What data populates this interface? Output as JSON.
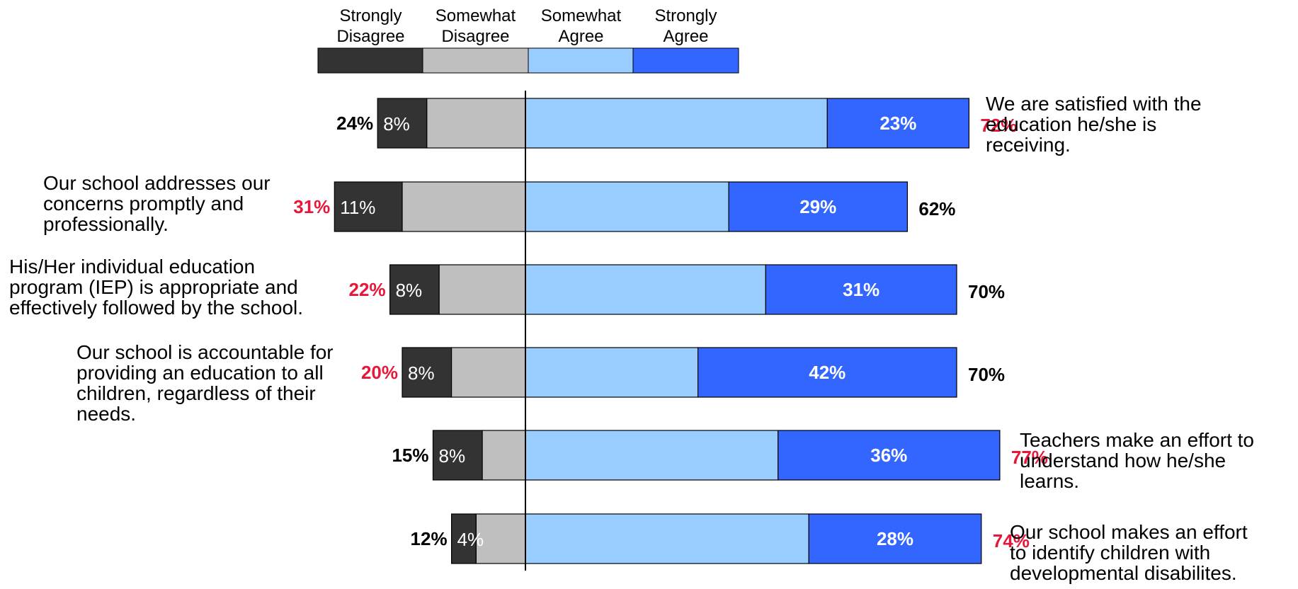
{
  "chart_data": {
    "type": "diverging_stacked_bar",
    "categories_legend": [
      "Strongly Disagree",
      "Somewhat Disagree",
      "Somewhat Agree",
      "Strongly Agree"
    ],
    "colors": {
      "strongly_disagree": "#333333",
      "somewhat_disagree": "#bfbfbf",
      "somewhat_agree": "#99ccff",
      "strongly_agree": "#3366ff",
      "highlight": "#e8173a",
      "normal_label": "#000000"
    },
    "rows": [
      {
        "statement": "We are satisfied with the\neducation he/she is\nreceiving.",
        "statement_side": "right",
        "strongly_disagree": 8,
        "somewhat_disagree": 16,
        "somewhat_agree": 49,
        "strongly_agree": 23,
        "strongly_disagree_label": "8%",
        "strongly_agree_label": "23%",
        "disagree_total_label": "24%",
        "agree_total_label": "72%",
        "highlight": "agree"
      },
      {
        "statement": "Our school addresses our\nconcerns promptly and\nprofessionally.",
        "statement_side": "left",
        "strongly_disagree": 11,
        "somewhat_disagree": 20,
        "somewhat_agree": 33,
        "strongly_agree": 29,
        "strongly_disagree_label": "11%",
        "strongly_agree_label": "29%",
        "disagree_total_label": "31%",
        "agree_total_label": "62%",
        "highlight": "disagree"
      },
      {
        "statement": "His/Her individual education\nprogram (IEP) is appropriate and\neffectively followed by the school.",
        "statement_side": "left",
        "strongly_disagree": 8,
        "somewhat_disagree": 14,
        "somewhat_agree": 39,
        "strongly_agree": 31,
        "strongly_disagree_label": "8%",
        "strongly_agree_label": "31%",
        "disagree_total_label": "22%",
        "agree_total_label": "70%",
        "highlight": "disagree"
      },
      {
        "statement": "Our school is accountable for\nproviding an education to all\nchildren, regardless of their\nneeds.",
        "statement_side": "left",
        "strongly_disagree": 8,
        "somewhat_disagree": 12,
        "somewhat_agree": 28,
        "strongly_agree": 42,
        "strongly_disagree_label": "8%",
        "strongly_agree_label": "42%",
        "disagree_total_label": "20%",
        "agree_total_label": "70%",
        "highlight": "disagree"
      },
      {
        "statement": "Teachers make an effort to\nunderstand how he/she\nlearns.",
        "statement_side": "right",
        "strongly_disagree": 8,
        "somewhat_disagree": 7,
        "somewhat_agree": 41,
        "strongly_agree": 36,
        "strongly_disagree_label": "8%",
        "strongly_agree_label": "36%",
        "disagree_total_label": "15%",
        "agree_total_label": "77%",
        "highlight": "agree"
      },
      {
        "statement": "Our school makes an effort\nto identify children with\ndevelopmental disabilites.",
        "statement_side": "right",
        "strongly_disagree": 4,
        "somewhat_disagree": 8,
        "somewhat_agree": 46,
        "strongly_agree": 28,
        "strongly_disagree_label": "4%",
        "strongly_agree_label": "28%",
        "disagree_total_label": "12%",
        "agree_total_label": "74%",
        "highlight": "agree"
      }
    ]
  }
}
